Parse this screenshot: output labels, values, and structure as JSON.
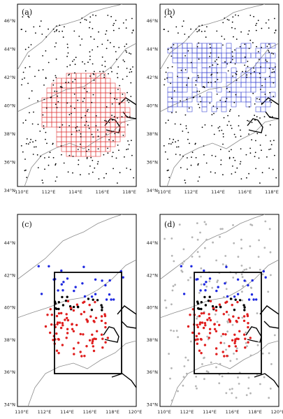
{
  "figure": {
    "panels": [
      {
        "id": "a",
        "label": "(a)",
        "lat_labels": [
          "46°N",
          "44°N",
          "42°N",
          "40°N",
          "38°N",
          "36°N",
          "34°N"
        ],
        "lon_labels": [
          "110°E",
          "112°E",
          "114°E",
          "116°E",
          "118°E"
        ],
        "grid_box_color": "#e03c3c",
        "station_color": "#000000"
      },
      {
        "id": "b",
        "label": "(b)",
        "lat_labels": [
          "46°N",
          "44°N",
          "42°N",
          "40°N",
          "38°N",
          "36°N",
          "34°N"
        ],
        "lon_labels": [
          "110°E",
          "112°E",
          "114°E",
          "116°E",
          "118°E"
        ],
        "grid_box_color": "#3c46d2",
        "station_color": "#000000"
      },
      {
        "id": "c",
        "label": "(c)",
        "lat_labels": [
          "44°N",
          "42°N",
          "40°N",
          "38°N",
          "36°N",
          "34°N"
        ],
        "lon_labels": [
          "110°E",
          "112°E",
          "114°E",
          "116°E",
          "118°E",
          "120°E"
        ],
        "colors": {
          "south": "#e01e1e",
          "middle": "#000000",
          "north": "#1e28e0"
        }
      },
      {
        "id": "d",
        "label": "(d)",
        "lat_labels": [
          "44°N",
          "42°N",
          "40°N",
          "38°N",
          "36°N",
          "34°N"
        ],
        "lon_labels": [
          "110°E",
          "112°E",
          "114°E",
          "116°E",
          "118°E",
          "120°E"
        ],
        "colors": {
          "south": "#e01e1e",
          "middle": "#000000",
          "north": "#1e28e0",
          "other": "#b4b4b4"
        }
      }
    ]
  }
}
